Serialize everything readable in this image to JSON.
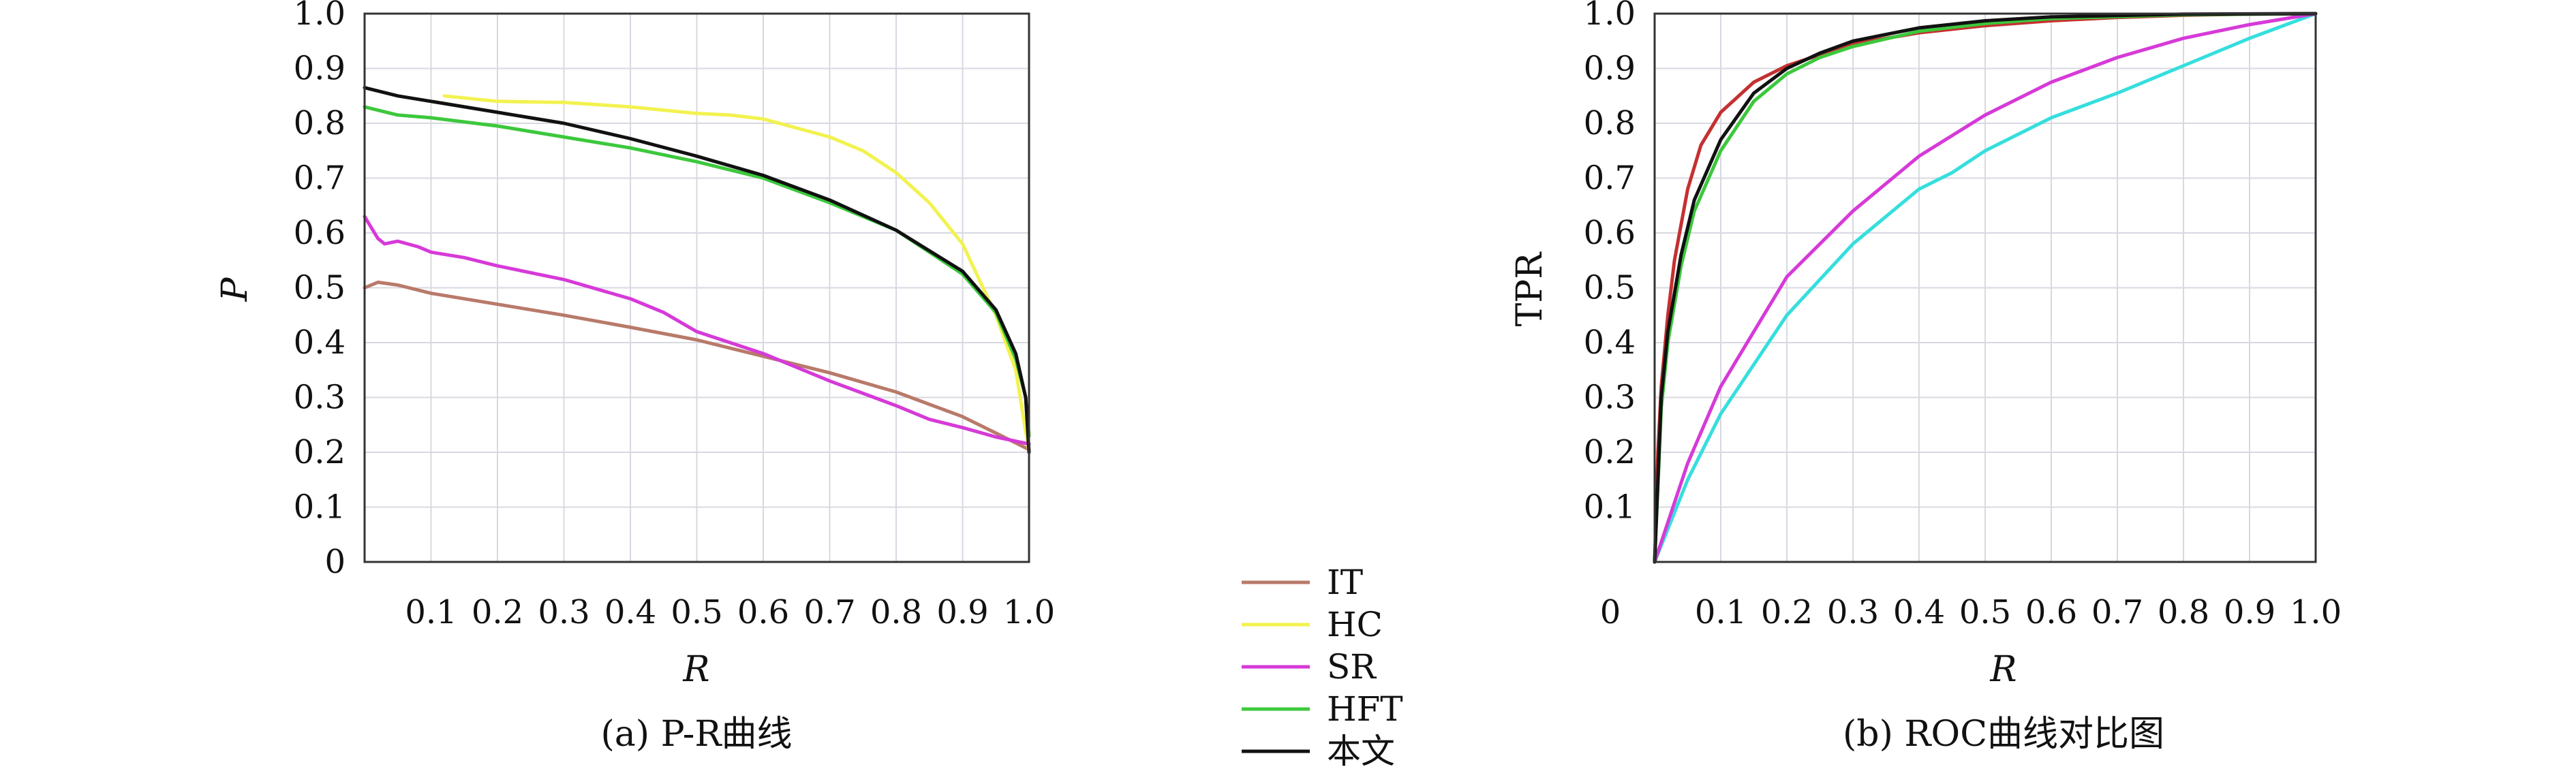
{
  "legend": {
    "items": [
      {
        "name": "IT",
        "color": "#b87a6a"
      },
      {
        "name": "HC",
        "color": "#f2f250"
      },
      {
        "name": "SR",
        "color": "#d63ad8"
      },
      {
        "name": "HFT",
        "color": "#3cc83c"
      },
      {
        "name": "本文",
        "color": "#111111"
      }
    ]
  },
  "chart_data": [
    {
      "type": "line",
      "title": "",
      "caption": "(a) P-R曲线",
      "xlabel": "R",
      "ylabel": "P",
      "xlim": [
        0.0,
        1.0
      ],
      "ylim": [
        0.0,
        1.0
      ],
      "xticks": [
        0.1,
        0.2,
        0.3,
        0.4,
        0.5,
        0.6,
        0.7,
        0.8,
        0.9,
        1.0
      ],
      "xtick_labels": [
        "0.1",
        "0.2",
        "0.3",
        "0.4",
        "0.5",
        "0.6",
        "0.7",
        "0.8",
        "0.9",
        "1.0"
      ],
      "yticks": [
        0,
        0.1,
        0.2,
        0.3,
        0.4,
        0.5,
        0.6,
        0.7,
        0.8,
        0.9,
        1.0
      ],
      "ytick_labels": [
        "0",
        "0.1",
        "0.2",
        "0.3",
        "0.4",
        "0.5",
        "0.6",
        "0.7",
        "0.8",
        "0.9",
        "1.0"
      ],
      "grid": true,
      "series": [
        {
          "name": "IT",
          "color": "#b87a6a",
          "points": [
            [
              0.0,
              0.5
            ],
            [
              0.02,
              0.51
            ],
            [
              0.05,
              0.505
            ],
            [
              0.1,
              0.49
            ],
            [
              0.2,
              0.47
            ],
            [
              0.3,
              0.45
            ],
            [
              0.4,
              0.428
            ],
            [
              0.5,
              0.405
            ],
            [
              0.6,
              0.375
            ],
            [
              0.7,
              0.345
            ],
            [
              0.8,
              0.31
            ],
            [
              0.9,
              0.265
            ],
            [
              0.95,
              0.235
            ],
            [
              1.0,
              0.205
            ]
          ]
        },
        {
          "name": "HC",
          "color": "#f2f250",
          "points": [
            [
              0.12,
              0.85
            ],
            [
              0.2,
              0.84
            ],
            [
              0.3,
              0.838
            ],
            [
              0.4,
              0.83
            ],
            [
              0.5,
              0.818
            ],
            [
              0.55,
              0.815
            ],
            [
              0.6,
              0.808
            ],
            [
              0.7,
              0.775
            ],
            [
              0.75,
              0.75
            ],
            [
              0.8,
              0.71
            ],
            [
              0.85,
              0.655
            ],
            [
              0.9,
              0.58
            ],
            [
              0.95,
              0.45
            ],
            [
              0.98,
              0.35
            ],
            [
              1.0,
              0.2
            ]
          ]
        },
        {
          "name": "SR",
          "color": "#d63ad8",
          "points": [
            [
              0.0,
              0.63
            ],
            [
              0.02,
              0.59
            ],
            [
              0.03,
              0.58
            ],
            [
              0.05,
              0.585
            ],
            [
              0.08,
              0.575
            ],
            [
              0.1,
              0.565
            ],
            [
              0.15,
              0.555
            ],
            [
              0.2,
              0.54
            ],
            [
              0.3,
              0.515
            ],
            [
              0.4,
              0.48
            ],
            [
              0.45,
              0.455
            ],
            [
              0.5,
              0.42
            ],
            [
              0.6,
              0.38
            ],
            [
              0.7,
              0.33
            ],
            [
              0.8,
              0.285
            ],
            [
              0.85,
              0.26
            ],
            [
              0.9,
              0.245
            ],
            [
              0.95,
              0.228
            ],
            [
              1.0,
              0.215
            ]
          ]
        },
        {
          "name": "HFT",
          "color": "#3cc83c",
          "points": [
            [
              0.0,
              0.83
            ],
            [
              0.05,
              0.815
            ],
            [
              0.1,
              0.81
            ],
            [
              0.2,
              0.795
            ],
            [
              0.3,
              0.775
            ],
            [
              0.4,
              0.755
            ],
            [
              0.5,
              0.73
            ],
            [
              0.6,
              0.7
            ],
            [
              0.7,
              0.655
            ],
            [
              0.8,
              0.605
            ],
            [
              0.9,
              0.525
            ],
            [
              0.95,
              0.455
            ],
            [
              0.98,
              0.37
            ],
            [
              0.995,
              0.3
            ],
            [
              1.0,
              0.23
            ]
          ]
        },
        {
          "name": "本文",
          "color": "#111111",
          "points": [
            [
              0.0,
              0.865
            ],
            [
              0.05,
              0.85
            ],
            [
              0.1,
              0.84
            ],
            [
              0.2,
              0.82
            ],
            [
              0.3,
              0.8
            ],
            [
              0.4,
              0.772
            ],
            [
              0.5,
              0.74
            ],
            [
              0.6,
              0.705
            ],
            [
              0.7,
              0.66
            ],
            [
              0.8,
              0.605
            ],
            [
              0.9,
              0.53
            ],
            [
              0.95,
              0.46
            ],
            [
              0.98,
              0.38
            ],
            [
              0.995,
              0.3
            ],
            [
              1.0,
              0.2
            ]
          ]
        }
      ]
    },
    {
      "type": "line",
      "title": "",
      "caption": "(b) ROC曲线对比图",
      "xlabel": "R",
      "ylabel": "TPR",
      "xlim": [
        0.0,
        1.0
      ],
      "ylim": [
        0.0,
        1.0
      ],
      "xticks": [
        0,
        0.1,
        0.2,
        0.3,
        0.4,
        0.5,
        0.6,
        0.7,
        0.8,
        0.9,
        1.0
      ],
      "xtick_labels": [
        "0",
        "0.1",
        "0.2",
        "0.3",
        "0.4",
        "0.5",
        "0.6",
        "0.7",
        "0.8",
        "0.9",
        "1.0"
      ],
      "yticks": [
        0.1,
        0.2,
        0.3,
        0.4,
        0.5,
        0.6,
        0.7,
        0.8,
        0.9,
        1.0
      ],
      "ytick_labels": [
        "0.1",
        "0.2",
        "0.3",
        "0.4",
        "0.5",
        "0.6",
        "0.7",
        "0.8",
        "0.9",
        "1.0"
      ],
      "grid": true,
      "series": [
        {
          "name": "IT",
          "color": "#c43030",
          "points": [
            [
              0.0,
              0.0
            ],
            [
              0.005,
              0.2
            ],
            [
              0.01,
              0.32
            ],
            [
              0.02,
              0.45
            ],
            [
              0.03,
              0.55
            ],
            [
              0.05,
              0.68
            ],
            [
              0.07,
              0.76
            ],
            [
              0.1,
              0.82
            ],
            [
              0.15,
              0.875
            ],
            [
              0.2,
              0.905
            ],
            [
              0.3,
              0.945
            ],
            [
              0.4,
              0.965
            ],
            [
              0.5,
              0.978
            ],
            [
              0.6,
              0.987
            ],
            [
              0.7,
              0.993
            ],
            [
              0.8,
              0.997
            ],
            [
              0.9,
              0.999
            ],
            [
              1.0,
              1.0
            ]
          ]
        },
        {
          "name": "HC",
          "color": "#36dede",
          "points": [
            [
              0.0,
              0.0
            ],
            [
              0.05,
              0.15
            ],
            [
              0.1,
              0.27
            ],
            [
              0.2,
              0.45
            ],
            [
              0.3,
              0.58
            ],
            [
              0.4,
              0.68
            ],
            [
              0.45,
              0.71
            ],
            [
              0.5,
              0.75
            ],
            [
              0.6,
              0.81
            ],
            [
              0.7,
              0.855
            ],
            [
              0.8,
              0.905
            ],
            [
              0.9,
              0.955
            ],
            [
              1.0,
              1.0
            ]
          ]
        },
        {
          "name": "SR",
          "color": "#d63ad8",
          "points": [
            [
              0.0,
              0.0
            ],
            [
              0.05,
              0.18
            ],
            [
              0.1,
              0.32
            ],
            [
              0.2,
              0.52
            ],
            [
              0.3,
              0.64
            ],
            [
              0.4,
              0.74
            ],
            [
              0.5,
              0.815
            ],
            [
              0.6,
              0.875
            ],
            [
              0.7,
              0.92
            ],
            [
              0.8,
              0.955
            ],
            [
              0.9,
              0.98
            ],
            [
              1.0,
              1.0
            ]
          ]
        },
        {
          "name": "HFT",
          "color": "#3cc83c",
          "points": [
            [
              0.0,
              0.0
            ],
            [
              0.01,
              0.28
            ],
            [
              0.02,
              0.4
            ],
            [
              0.04,
              0.54
            ],
            [
              0.06,
              0.64
            ],
            [
              0.1,
              0.75
            ],
            [
              0.15,
              0.84
            ],
            [
              0.2,
              0.89
            ],
            [
              0.25,
              0.92
            ],
            [
              0.3,
              0.94
            ],
            [
              0.4,
              0.968
            ],
            [
              0.5,
              0.982
            ],
            [
              0.6,
              0.991
            ],
            [
              0.8,
              0.998
            ],
            [
              1.0,
              1.0
            ]
          ]
        },
        {
          "name": "本文",
          "color": "#111111",
          "points": [
            [
              0.0,
              0.0
            ],
            [
              0.01,
              0.3
            ],
            [
              0.02,
              0.42
            ],
            [
              0.04,
              0.56
            ],
            [
              0.06,
              0.66
            ],
            [
              0.1,
              0.77
            ],
            [
              0.15,
              0.855
            ],
            [
              0.2,
              0.9
            ],
            [
              0.25,
              0.928
            ],
            [
              0.3,
              0.95
            ],
            [
              0.4,
              0.974
            ],
            [
              0.5,
              0.987
            ],
            [
              0.6,
              0.994
            ],
            [
              0.8,
              0.999
            ],
            [
              1.0,
              1.0
            ]
          ]
        }
      ]
    }
  ]
}
